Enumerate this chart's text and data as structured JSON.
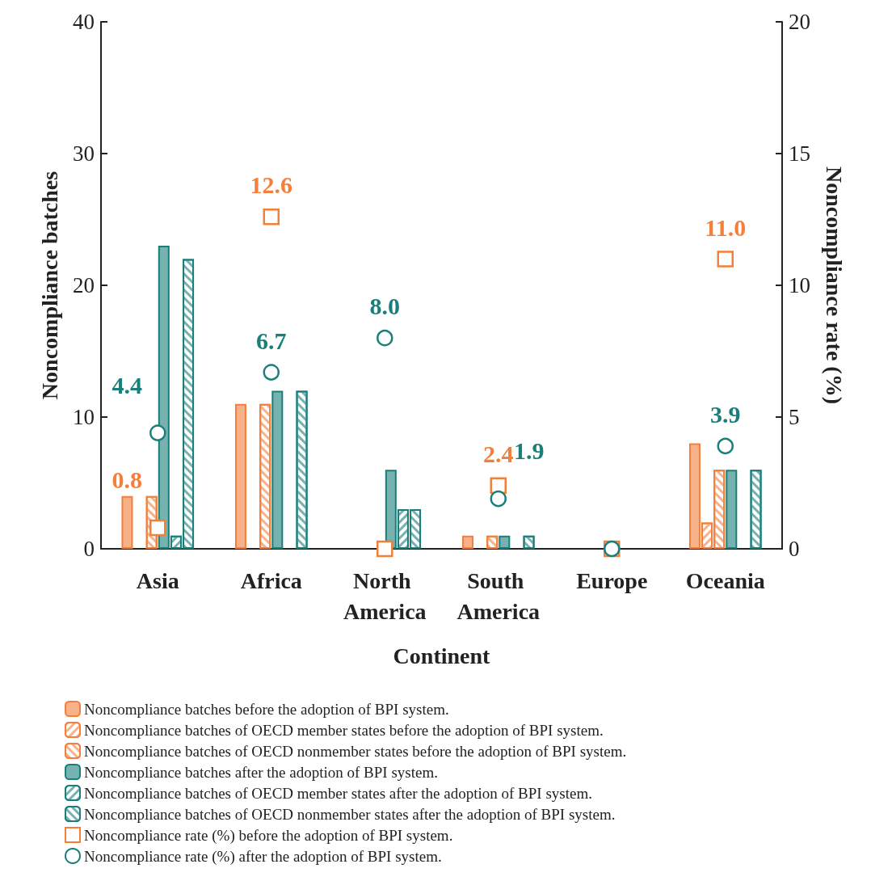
{
  "chart_data": {
    "type": "bar",
    "xlabel": "Continent",
    "ylabel": "Noncompliance batches",
    "y2label": "Noncompliance rate (%)",
    "categories": [
      "Asia",
      "Africa",
      "North America",
      "South America",
      "Europe",
      "Oceania"
    ],
    "series": [
      {
        "name": "Noncompliance batches before the adoption of BPI system.",
        "color": "#f47f3a",
        "values": [
          4,
          11,
          0,
          1,
          0,
          8
        ]
      },
      {
        "name": "Noncompliance batches of OECD member states before the adoption of BPI system.",
        "color": "#f47f3a",
        "values": [
          0,
          0,
          0,
          0,
          0,
          2
        ]
      },
      {
        "name": "Noncompliance batches of OECD nonmember states before the adoption of BPI system.",
        "color": "#f47f3a",
        "values": [
          4,
          11,
          0,
          1,
          0,
          6
        ]
      },
      {
        "name": "Noncompliance batches after the adoption of BPI system.",
        "color": "#1a7f7a",
        "values": [
          23,
          12,
          6,
          1,
          0,
          6
        ]
      },
      {
        "name": "Noncompliance batches of OECD member states after the adoption of BPI system.",
        "color": "#1a7f7a",
        "values": [
          1,
          0,
          3,
          0,
          0,
          0
        ]
      },
      {
        "name": "Noncompliance batches of OECD nonmember states after the adoption of BPI system.",
        "color": "#1a7f7a",
        "values": [
          22,
          12,
          3,
          1,
          0,
          6
        ]
      },
      {
        "name": "Noncompliance rate (%) before the adoption of BPI system.",
        "type": "scatter",
        "axis": "y2",
        "marker": "square",
        "color": "#f47f3a",
        "values": [
          0.8,
          12.6,
          0,
          2.4,
          0,
          11.0
        ],
        "value_labels": [
          "0.8",
          "12.6",
          null,
          "2.4",
          null,
          "11.0"
        ]
      },
      {
        "name": "Noncompliance rate (%) after the adoption of BPI system.",
        "type": "scatter",
        "axis": "y2",
        "marker": "circle",
        "color": "#1a7f7a",
        "values": [
          4.4,
          6.7,
          8.0,
          1.9,
          0,
          3.9
        ],
        "value_labels": [
          "4.4",
          "6.7",
          "8.0",
          "1.9",
          null,
          "3.9"
        ]
      }
    ],
    "ylim": [
      0,
      40
    ],
    "yticks": [
      0,
      10,
      20,
      30,
      40
    ],
    "y2lim": [
      0,
      20
    ],
    "y2ticks": [
      0,
      5,
      10,
      15,
      20
    ],
    "grid": false,
    "legend": "bottom"
  }
}
